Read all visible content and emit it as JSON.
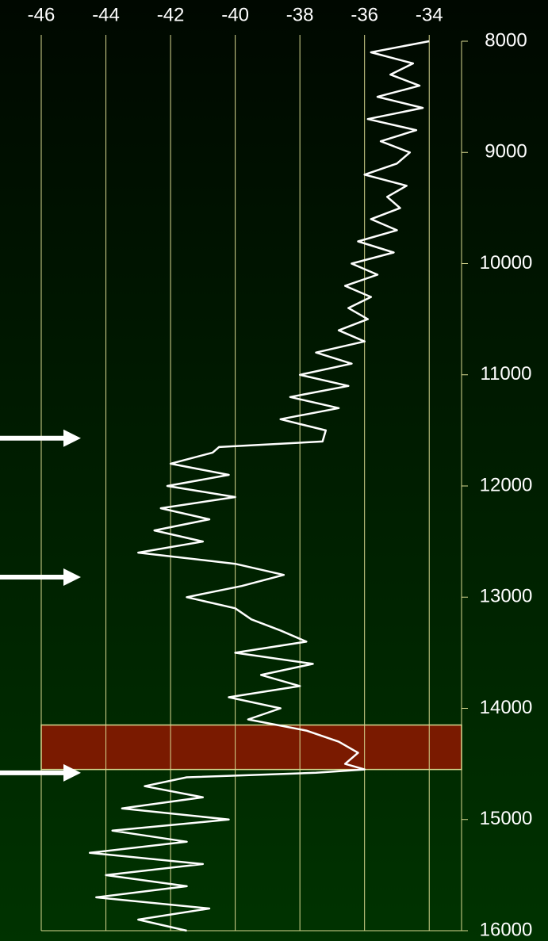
{
  "chart_data": {
    "type": "line",
    "xlim": [
      -46,
      -33
    ],
    "xticks": [
      -46,
      -44,
      -42,
      -40,
      -38,
      -36,
      -34
    ],
    "ylim": [
      8000,
      16000
    ],
    "yticks": [
      8000,
      9000,
      10000,
      11000,
      12000,
      13000,
      14000,
      15000,
      16000
    ],
    "grid": true,
    "grid_color": "#d8d890",
    "band": [
      14150,
      14550
    ],
    "band_color": "#7a1a00",
    "arrows": [
      11570,
      12820,
      14580
    ],
    "series": [
      {
        "color": "#ffffff",
        "depths": [
          8000,
          8100,
          8200,
          8300,
          8400,
          8500,
          8600,
          8700,
          8800,
          8900,
          9000,
          9100,
          9200,
          9300,
          9400,
          9500,
          9600,
          9700,
          9800,
          9900,
          10000,
          10100,
          10200,
          10300,
          10400,
          10500,
          10600,
          10700,
          10800,
          10900,
          11000,
          11100,
          11200,
          11300,
          11400,
          11500,
          11600,
          11650,
          11700,
          11800,
          11900,
          12000,
          12100,
          12200,
          12300,
          12400,
          12500,
          12600,
          12700,
          12800,
          12900,
          13000,
          13100,
          13200,
          13300,
          13400,
          13500,
          13600,
          13700,
          13800,
          13900,
          14000,
          14100,
          14200,
          14300,
          14400,
          14500,
          14550,
          14580,
          14620,
          14700,
          14800,
          14900,
          15000,
          15100,
          15200,
          15300,
          15400,
          15500,
          15600,
          15700,
          15800,
          15900,
          16000
        ],
        "values": [
          -34.0,
          -35.8,
          -34.5,
          -35.2,
          -34.3,
          -35.6,
          -34.2,
          -35.9,
          -34.4,
          -35.5,
          -34.6,
          -35.0,
          -36.0,
          -34.7,
          -35.3,
          -34.9,
          -35.8,
          -35.0,
          -36.2,
          -35.1,
          -36.4,
          -35.6,
          -36.6,
          -35.8,
          -36.5,
          -35.9,
          -36.8,
          -36.0,
          -37.5,
          -36.4,
          -38.0,
          -36.5,
          -38.3,
          -36.8,
          -38.6,
          -37.2,
          -37.3,
          -40.5,
          -40.7,
          -42.0,
          -40.2,
          -42.1,
          -40.0,
          -42.3,
          -40.8,
          -42.5,
          -41.0,
          -43.0,
          -40.0,
          -38.5,
          -39.8,
          -41.5,
          -40.0,
          -39.5,
          -38.6,
          -37.8,
          -40.0,
          -37.6,
          -39.2,
          -38.0,
          -40.2,
          -38.6,
          -39.6,
          -37.8,
          -36.8,
          -36.2,
          -36.6,
          -36.0,
          -37.5,
          -41.5,
          -42.8,
          -41.0,
          -43.5,
          -40.2,
          -43.8,
          -41.5,
          -44.5,
          -41.0,
          -44.0,
          -41.5,
          -44.3,
          -40.8,
          -43.0,
          -41.5
        ]
      }
    ]
  }
}
